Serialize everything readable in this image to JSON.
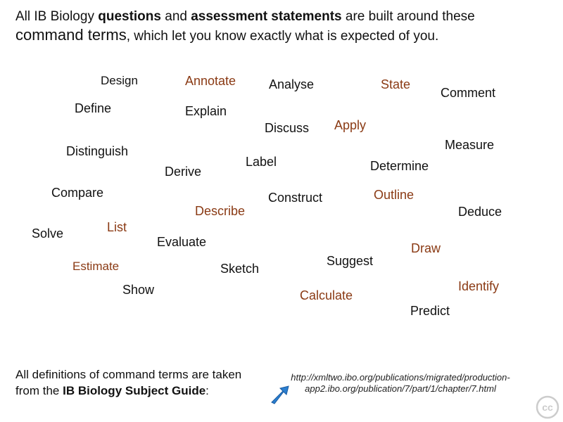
{
  "header": {
    "line1": {
      "pre": "All IB Biology ",
      "bold1": "questions",
      "mid": " and ",
      "bold2": "assessment statements",
      "post": " are built around these"
    },
    "line2": {
      "big": "command terms",
      "post": ", which let you know exactly what is expected of you."
    }
  },
  "colors": {
    "black": "#111111",
    "brown": "#8a3a14",
    "arrow_blue": "#2b7fd0"
  },
  "terms": {
    "design": "Design",
    "annotate": "Annotate",
    "analyse": "Analyse",
    "state": "State",
    "comment": "Comment",
    "define": "Define",
    "explain": "Explain",
    "discuss": "Discuss",
    "apply": "Apply",
    "measure": "Measure",
    "distinguish": "Distinguish",
    "label": "Label",
    "derive": "Derive",
    "determine": "Determine",
    "compare": "Compare",
    "construct": "Construct",
    "outline": "Outline",
    "describe": "Describe",
    "deduce": "Deduce",
    "solve": "Solve",
    "list": "List",
    "evaluate": "Evaluate",
    "draw": "Draw",
    "suggest": "Suggest",
    "estimate": "Estimate",
    "sketch": "Sketch",
    "show": "Show",
    "identify": "Identify",
    "calculate": "Calculate",
    "predict": "Predict"
  },
  "footer": {
    "line1": "All definitions of command terms are taken",
    "line2_pre": "from the ",
    "line2_bold": "IB Biology Subject Guide",
    "line2_post": ":",
    "url_line1": "http://xmltwo.ibo.org/publications/migrated/production-",
    "url_line2": "app2.ibo.org/publication/7/part/1/chapter/7.html",
    "arrow_icon": "pointer-arrow-icon",
    "cc_icon": "creative-commons-icon",
    "cc_text": "cc"
  }
}
